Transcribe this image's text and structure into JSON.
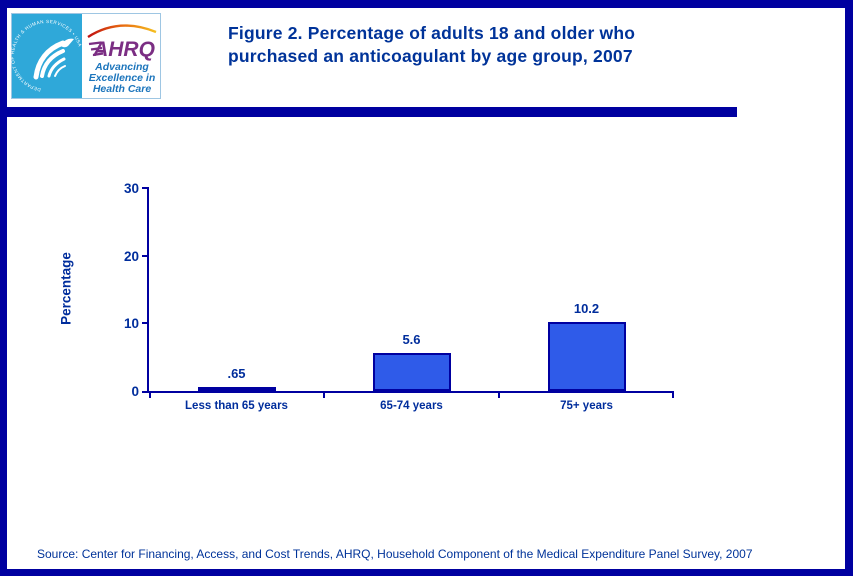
{
  "page": {
    "background": "#FFFFFF",
    "border_color": "#0000A0"
  },
  "header": {
    "logo": {
      "hhs_circle_text": "DEPARTMENT OF HEALTH & HUMAN SERVICES • USA",
      "ahrq_wordmark": "AHRQ",
      "tagline_line1": "Advancing",
      "tagline_line2": "Excellence in",
      "tagline_line3": "Health Care",
      "hhs_panel_color": "#2FA8D9",
      "ahrq_purple": "#7B2E83",
      "tagline_blue": "#1C75BC"
    },
    "title_line1": "Figure 2. Percentage of adults 18 and older who",
    "title_line2": "purchased an anticoagulant by age group, 2007",
    "title_color": "#003399",
    "divider_color": "#0000A0"
  },
  "chart_data": {
    "type": "bar",
    "title": "Figure 2. Percentage of adults 18 and older who purchased an anticoagulant by age group, 2007",
    "categories": [
      "Less than 65 years",
      "65-74 years",
      "75+ years"
    ],
    "values": [
      0.65,
      5.6,
      10.2
    ],
    "value_labels": [
      ".65",
      "5.6",
      "10.2"
    ],
    "xlabel": "",
    "ylabel": "Percentage",
    "ylim": [
      0,
      30
    ],
    "yticks": [
      0,
      10,
      20,
      30
    ],
    "grid": false,
    "legend": "none",
    "bar_fill": "#2F5BE9",
    "bar_border": "#0000A0",
    "axis_color": "#0000A0",
    "text_color": "#002D9C"
  },
  "footer": {
    "source_text": "Source: Center for Financing, Access, and Cost Trends, AHRQ, Household Component of the Medical Expenditure Panel Survey, 2007"
  }
}
